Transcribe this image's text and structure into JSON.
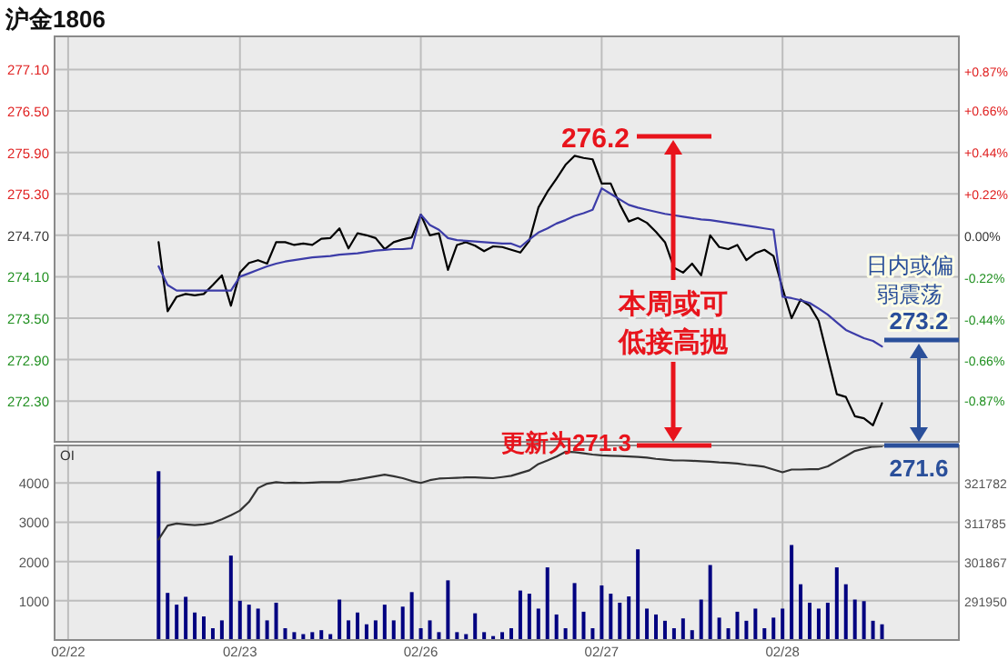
{
  "chart_data": [
    {
      "type": "line",
      "title": "沪金1806",
      "tick_labels": "y",
      "grid": true,
      "categories": [
        null,
        null,
        null,
        null,
        null,
        null,
        null,
        null,
        null,
        null,
        null,
        null,
        null,
        null,
        null,
        null,
        null,
        null,
        null,
        null,
        null,
        null,
        null,
        null,
        null,
        null,
        null,
        null,
        null,
        null,
        null,
        null,
        null,
        null,
        null,
        null,
        null,
        null,
        null,
        null,
        null,
        null,
        null,
        null,
        null,
        null,
        null,
        null,
        null,
        null,
        null,
        null,
        null,
        null,
        null,
        null,
        null,
        null,
        null,
        null,
        null,
        null,
        null,
        null,
        null,
        null,
        null,
        null,
        null,
        null,
        null,
        null,
        null,
        null,
        null,
        null,
        null,
        null,
        null,
        null,
        null,
        null,
        null,
        null,
        null,
        null,
        null,
        null,
        null,
        null,
        null,
        null,
        null,
        null,
        null,
        null,
        null,
        null,
        null,
        null
      ],
      "ylim": [
        271.71,
        277.58
      ],
      "yticks": [
        {
          "value": 272.3,
          "label": "272.30"
        },
        {
          "value": 272.9,
          "label": "272.90"
        },
        {
          "value": 273.5,
          "label": "273.50"
        },
        {
          "value": 274.1,
          "label": "274.10"
        },
        {
          "value": 274.7,
          "label": "274.70"
        },
        {
          "value": 275.3,
          "label": "275.30"
        },
        {
          "value": 275.9,
          "label": "275.90"
        },
        {
          "value": 276.5,
          "label": "276.50"
        },
        {
          "value": 277.1,
          "label": "277.10"
        }
      ],
      "y2lim": [
        -1.09,
        1.05
      ],
      "y2ticks": [
        {
          "value": -0.87,
          "label": "-0.87%"
        },
        {
          "value": -0.66,
          "label": "-0.66%"
        },
        {
          "value": -0.44,
          "label": "-0.44%"
        },
        {
          "value": -0.22,
          "label": "-0.22%"
        },
        {
          "value": 0,
          "label": "0.00%"
        },
        {
          "value": 0.22,
          "label": "+0.22%"
        },
        {
          "value": 0.44,
          "label": "+0.44%"
        },
        {
          "value": 0.66,
          "label": "+0.66%"
        },
        {
          "value": 0.87,
          "label": "+0.87%"
        }
      ],
      "series": [
        {
          "color": "#000000",
          "values": [
            null,
            null,
            null,
            null,
            null,
            null,
            null,
            null,
            null,
            null,
            null,
            274.6,
            273.6,
            273.81,
            273.85,
            273.83,
            273.85,
            273.98,
            274.12,
            273.68,
            274.16,
            274.3,
            274.34,
            274.29,
            274.6,
            274.6,
            274.56,
            274.58,
            274.56,
            274.65,
            274.66,
            274.8,
            274.51,
            274.73,
            274.7,
            274.66,
            274.5,
            274.6,
            274.64,
            274.67,
            275.0,
            274.7,
            274.73,
            274.2,
            274.56,
            274.6,
            274.55,
            274.47,
            274.54,
            274.53,
            274.49,
            274.45,
            274.62,
            275.1,
            275.33,
            275.52,
            275.72,
            275.85,
            275.82,
            275.8,
            275.45,
            275.45,
            275.15,
            274.9,
            274.95,
            274.88,
            274.75,
            274.6,
            274.23,
            274.16,
            274.29,
            274.12,
            274.7,
            274.53,
            274.5,
            274.56,
            274.34,
            274.44,
            274.49,
            274.4,
            273.93,
            273.5,
            273.77,
            273.68,
            273.46,
            272.93,
            272.4,
            272.36,
            272.08,
            272.05,
            271.95,
            272.27,
            null,
            null,
            null,
            null,
            null,
            null,
            null,
            null
          ]
        },
        {
          "color": "#3c3ca8",
          "values": [
            null,
            null,
            null,
            null,
            null,
            null,
            null,
            null,
            null,
            null,
            null,
            274.25,
            273.98,
            273.9,
            273.9,
            273.9,
            273.9,
            273.9,
            273.9,
            273.9,
            274.1,
            274.15,
            274.2,
            274.25,
            274.29,
            274.32,
            274.34,
            274.36,
            274.38,
            274.39,
            274.4,
            274.42,
            274.43,
            274.44,
            274.46,
            274.48,
            274.49,
            274.5,
            274.5,
            274.51,
            275.0,
            274.85,
            274.78,
            274.66,
            274.63,
            274.62,
            274.61,
            274.6,
            274.59,
            274.58,
            274.58,
            274.53,
            274.64,
            274.74,
            274.8,
            274.87,
            274.92,
            274.98,
            275.02,
            275.07,
            275.38,
            275.3,
            275.22,
            275.14,
            275.1,
            275.07,
            275.04,
            275.01,
            274.99,
            274.97,
            274.95,
            274.93,
            274.92,
            274.9,
            274.88,
            274.86,
            274.84,
            274.82,
            274.8,
            274.78,
            273.81,
            273.79,
            273.76,
            273.72,
            273.64,
            273.55,
            273.44,
            273.33,
            273.27,
            273.21,
            273.17,
            273.09,
            null,
            null,
            null,
            null,
            null,
            null,
            null,
            null
          ]
        }
      ],
      "annotations": [
        "276.2",
        "273.2",
        "更新为271.3",
        "本周或可低接高抛",
        "日内或偏弱震荡",
        "271.6"
      ]
    },
    {
      "type": "bar",
      "grid": true,
      "categories": [
        null,
        "02/22",
        null,
        null,
        null,
        null,
        null,
        null,
        null,
        null,
        null,
        null,
        null,
        null,
        null,
        null,
        null,
        null,
        null,
        null,
        "02/23",
        null,
        null,
        null,
        null,
        null,
        null,
        null,
        null,
        null,
        null,
        null,
        null,
        null,
        null,
        null,
        null,
        null,
        null,
        null,
        "02/26",
        null,
        null,
        null,
        null,
        null,
        null,
        null,
        null,
        null,
        null,
        null,
        null,
        null,
        null,
        null,
        null,
        null,
        null,
        null,
        "02/27",
        null,
        null,
        null,
        null,
        null,
        null,
        null,
        null,
        null,
        null,
        null,
        null,
        null,
        null,
        null,
        null,
        null,
        null,
        null,
        "02/28",
        null,
        null,
        null,
        null,
        null,
        null,
        null,
        null,
        null,
        null,
        null,
        null,
        null,
        null,
        null,
        null,
        null,
        null,
        null
      ],
      "ylim": [
        0,
        4956
      ],
      "yticks": [
        1000,
        2000,
        3000,
        4000
      ],
      "y2lim": [
        282000,
        331300
      ],
      "y2ticks": [
        291950,
        301867,
        311785,
        321782
      ],
      "series": [
        {
          "color": "#000080",
          "values": [
            null,
            null,
            null,
            null,
            null,
            null,
            null,
            null,
            null,
            null,
            null,
            4300,
            1200,
            900,
            1100,
            700,
            600,
            300,
            500,
            2150,
            1000,
            900,
            800,
            500,
            950,
            300,
            200,
            150,
            200,
            250,
            150,
            1030,
            500,
            700,
            400,
            500,
            900,
            500,
            850,
            1220,
            300,
            500,
            200,
            1520,
            200,
            150,
            680,
            200,
            100,
            200,
            300,
            1260,
            1180,
            800,
            1850,
            650,
            300,
            1450,
            720,
            300,
            1390,
            1180,
            950,
            1110,
            2310,
            800,
            650,
            490,
            300,
            550,
            250,
            1030,
            1910,
            570,
            300,
            720,
            490,
            800,
            300,
            570,
            800,
            2420,
            1420,
            950,
            800,
            950,
            1850,
            1420,
            1030,
            990,
            490,
            400,
            null,
            null,
            null,
            null,
            null,
            null,
            null,
            null
          ]
        },
        {
          "type": "line",
          "axis": "y2",
          "color": "#333333",
          "values": [
            null,
            null,
            null,
            null,
            null,
            null,
            null,
            null,
            null,
            null,
            null,
            307500,
            311000,
            311500,
            311300,
            311100,
            311300,
            311700,
            312600,
            313600,
            314800,
            317000,
            320500,
            321600,
            322000,
            321800,
            321900,
            321800,
            321900,
            322000,
            322000,
            322000,
            322400,
            322700,
            323100,
            323500,
            323900,
            323500,
            323000,
            322300,
            321800,
            322500,
            322900,
            323000,
            323100,
            323200,
            323200,
            323100,
            323000,
            323300,
            323600,
            324300,
            325000,
            326600,
            327500,
            328500,
            329700,
            329600,
            329300,
            329000,
            328800,
            328700,
            328600,
            328500,
            328400,
            328200,
            327900,
            327700,
            327500,
            327500,
            327400,
            327300,
            327200,
            327000,
            326900,
            326700,
            326400,
            326200,
            325900,
            325200,
            324500,
            325200,
            325200,
            325300,
            325300,
            326000,
            327300,
            328600,
            329900,
            330500,
            331000,
            331100,
            null,
            null,
            null,
            null,
            null,
            null,
            null,
            null
          ]
        }
      ],
      "annotations": [
        "OI"
      ]
    }
  ]
}
